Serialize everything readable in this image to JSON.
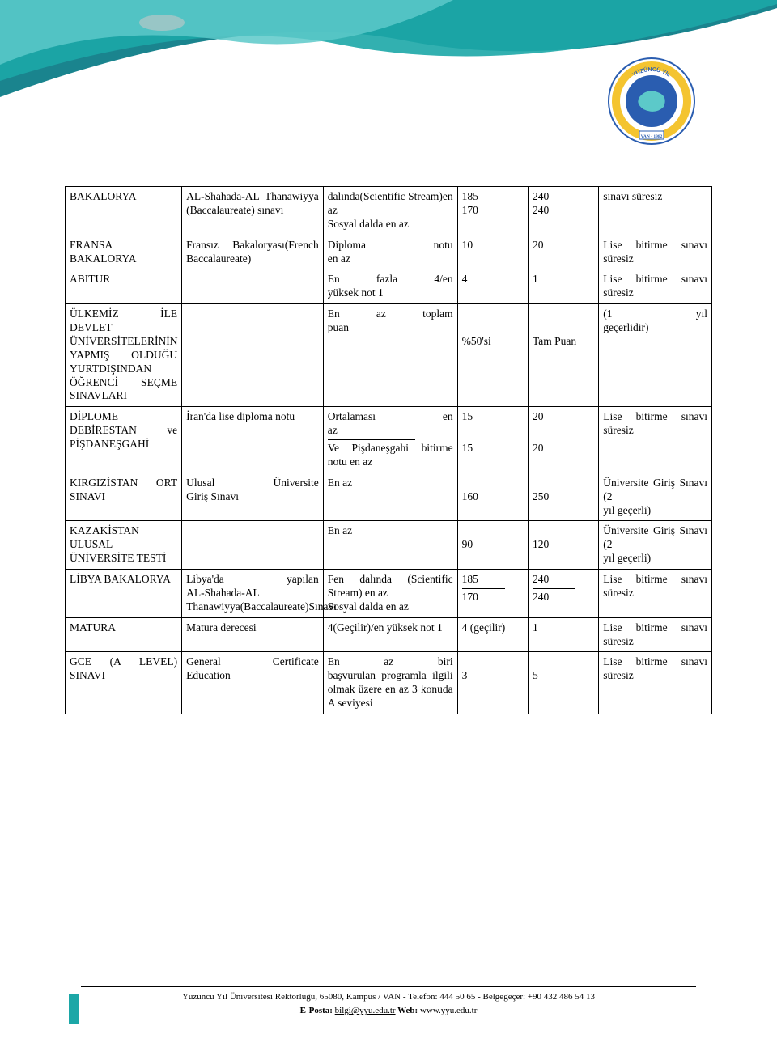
{
  "rows": [
    {
      "c1": "BAKALORYA",
      "c2": "AL-Shahada-AL Thanawiyya (Baccalaureate) sınavı",
      "c3": "dalında(Scientific Stream)en az\nSosyal dalda en az",
      "c4": "185\n170",
      "c5": "240\n240",
      "c6": "sınavı süresiz"
    },
    {
      "c1": "FRANSA BAKALORYA",
      "c2": "Fransız Bakaloryası(French Baccalaureate)",
      "c3": "Diploma notu en az",
      "c3_jus1": "Diploma notu",
      "c3_rest": "en az",
      "c4": "10",
      "c5": "20",
      "c6": "Lise bitirme sınavı süresiz"
    },
    {
      "c1": "ABITUR",
      "c2": "",
      "c3_jus1": "En fazla 4/en",
      "c3_rest": "yüksek not 1",
      "c4": "4",
      "c5": "1",
      "c6": "Lise bitirme sınavı süresiz"
    },
    {
      "c1": "ÜLKEMİZ İLE DEVLET ÜNİVERSİTELERİNİN YAPMIŞ OLDUĞU YURTDIŞINDAN ÖĞRENCİ SEÇME SINAVLARI",
      "c2": "",
      "c3_jus1": "En az toplam",
      "c3_rest": "puan",
      "c4": "\n\n%50'si",
      "c5": "\n\nTam Puan",
      "c6_jus1": "(1 yıl",
      "c6_rest": "geçerlidir)"
    },
    {
      "c1": "DİPLOME DEBİRESTAN ve PİŞDANEŞGAHİ",
      "c2": "İran'da lise diploma notu",
      "c3_jus1": "Ortalaması en",
      "c3_rest": "az",
      "c3_hr": true,
      "c3_after": "Ve Pişdaneşgahi bitirme notu en az",
      "c4": "15",
      "c4_hr": true,
      "c4_after": "\n15",
      "c5": "20",
      "c5_hr": true,
      "c5_after": "\n20",
      "c6": "Lise bitirme sınavı süresiz"
    },
    {
      "c1": "KIRGIZİSTAN ORT SINAVI",
      "c2_jus1": "Ulusal Üniversite",
      "c2_rest": "Giriş Sınavı",
      "c3": "En az",
      "c4": "\n160",
      "c5": "\n250",
      "c6": "Üniversite Giriş Sınavı (2\nyıl geçerli)"
    },
    {
      "c1": "KAZAKİSTAN ULUSAL ÜNİVERSİTE TESTİ",
      "c2": "",
      "c3": "En az",
      "c4": "\n90",
      "c5": "\n120",
      "c6": "Üniversite Giriş Sınavı (2\nyıl geçerli)"
    },
    {
      "c1": "LİBYA BAKALORYA",
      "c2_jus1": "Libya'da yapılan",
      "c2_rest": "AL-Shahada-AL Thanawiyya(Baccalaureate)Sınavı",
      "c3": "Fen dalında (Scientific Stream) en az\nSosyal dalda en az",
      "c4": "185",
      "c4_hr": true,
      "c4_after": "170",
      "c5": "240",
      "c5_hr": true,
      "c5_after": "240",
      "c6": "Lise bitirme sınavı süresiz"
    },
    {
      "c1": "MATURA",
      "c2": "Matura derecesi",
      "c3": "4(Geçilir)/en yüksek not 1",
      "c4": "4 (geçilir)",
      "c5": "1",
      "c6": "Lise bitirme sınavı süresiz"
    },
    {
      "c1": "GCE (A LEVEL) SINAVI",
      "c2_jus1": "General Certificate",
      "c2_rest": "Education",
      "c3_jus1": "En az biri",
      "c3_rest": "başvurulan programla ilgili olmak üzere en az 3 konuda A seviyesi",
      "c4": "\n3",
      "c5": "\n5",
      "c6": "Lise bitirme sınavı süresiz"
    }
  ],
  "footer": {
    "line1": "Yüzüncü Yıl Üniversitesi Rektörlüğü, 65080, Kampüs / VAN - Telefon: 444 50 65  - Belgegeçer: +90 432 486 54 13",
    "line2_pre": "E-Posta: ",
    "line2_email": "bilgi@yyu.edu.tr",
    "line2_mid": " Web: ",
    "line2_web": "www.yyu.edu.tr"
  },
  "logo": {
    "outer_text_top": "YÜZÜNCÜ YIL",
    "outer_text_right": "ÜNİVERSİTESİ",
    "bottom_text": "VAN - 1982"
  },
  "colors": {
    "teal_dark": "#0e7d88",
    "teal_mid": "#1ca7a7",
    "teal_light": "#5cc9c9",
    "logo_blue": "#2a5db0",
    "logo_yellow": "#f4c430",
    "border": "#000000",
    "text": "#000000",
    "bg": "#ffffff"
  }
}
